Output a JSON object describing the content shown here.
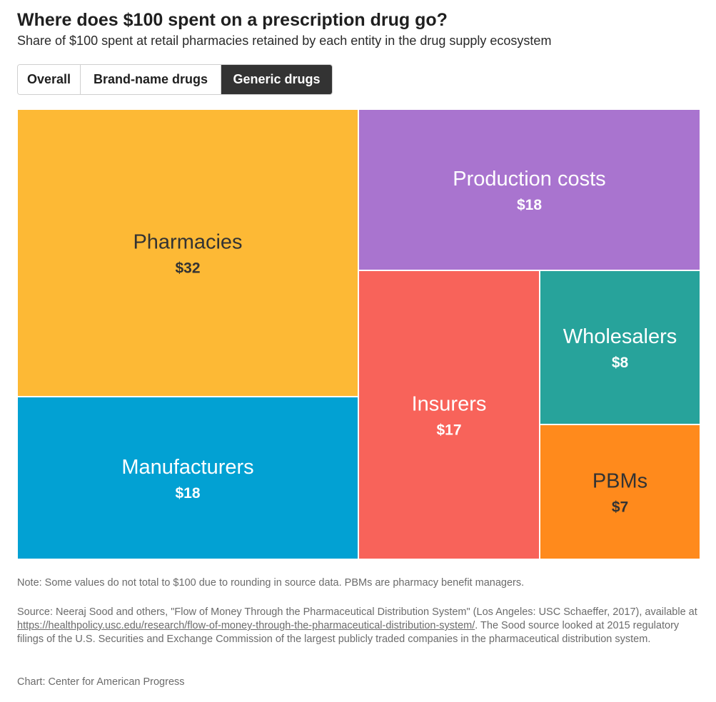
{
  "header": {
    "title": "Where does $100 spent on a prescription drug go?",
    "subtitle": "Share of $100 spent at retail pharmacies retained by each entity in the drug supply ecosystem"
  },
  "tabs": [
    {
      "label": "Overall",
      "active": false
    },
    {
      "label": "Brand-name drugs",
      "active": false
    },
    {
      "label": "Generic drugs",
      "active": true
    }
  ],
  "chart_data": {
    "type": "treemap",
    "units": "$",
    "items": [
      {
        "name": "Pharmacies",
        "value": 32,
        "display": "$32",
        "color": "#FDB935",
        "text_color": "#333333"
      },
      {
        "name": "Production costs",
        "value": 18,
        "display": "$18",
        "color": "#A974CF",
        "text_color": "#ffffff"
      },
      {
        "name": "Manufacturers",
        "value": 18,
        "display": "$18",
        "color": "#02A1D3",
        "text_color": "#ffffff"
      },
      {
        "name": "Insurers",
        "value": 17,
        "display": "$17",
        "color": "#F8635A",
        "text_color": "#ffffff"
      },
      {
        "name": "Wholesalers",
        "value": 8,
        "display": "$8",
        "color": "#27A39B",
        "text_color": "#ffffff"
      },
      {
        "name": "PBMs",
        "value": 7,
        "display": "$7",
        "color": "#FF8A1C",
        "text_color": "#333333"
      }
    ]
  },
  "footer": {
    "note": "Note: Some values do not total to $100 due to rounding in source data. PBMs are pharmacy benefit managers.",
    "source_before": "Source: Neeraj Sood and others, \"Flow of Money Through the Pharmaceutical Distribution System\" (Los Angeles: USC Schaeffer, 2017), available at ",
    "source_link": "https://healthpolicy.usc.edu/research/flow-of-money-through-the-pharmaceutical-distribution-system/",
    "source_after": ". The Sood source looked at 2015 regulatory filings of the U.S. Securities and Exchange Commission of the largest publicly traded companies in the pharmaceutical distribution system.",
    "credit": "Chart: Center for American Progress"
  }
}
